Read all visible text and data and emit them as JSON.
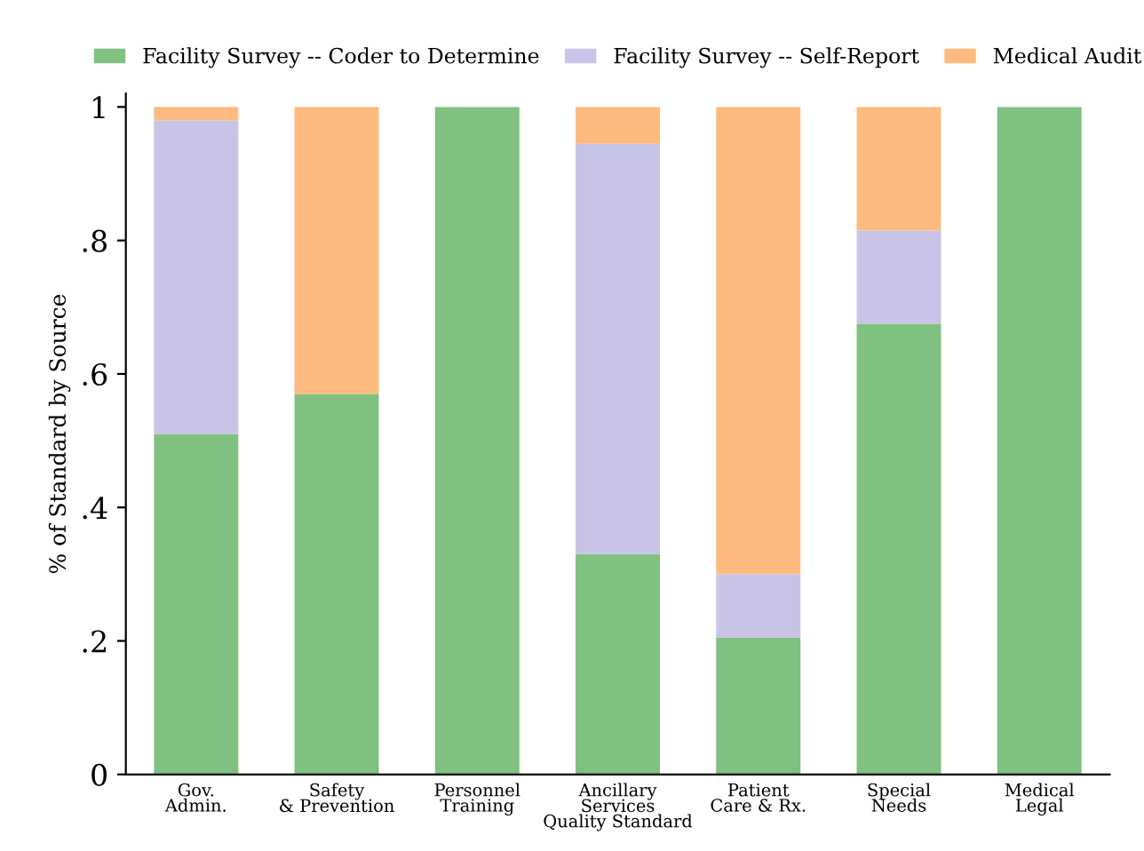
{
  "chart_data": {
    "type": "bar",
    "stacked": true,
    "ylabel": "% of Standard by Source",
    "categories": [
      "Gov.\nAdmin.",
      "Safety\n& Prevention",
      "Personnel\nTraining",
      "Ancillary\nServices\nQuality Standard",
      "Patient\nCare & Rx.",
      "Special\nNeeds",
      "Medical\nLegal"
    ],
    "series": [
      {
        "name": "Facility Survey -- Coder to Determine",
        "color": "#80c080",
        "values": [
          0.51,
          0.57,
          1,
          0.33,
          0.205,
          0.675,
          1
        ]
      },
      {
        "name": "Facility Survey -- Self-Report",
        "color": "#c8c4e8",
        "values": [
          0.47,
          0,
          0,
          0.615,
          0.095,
          0.14,
          0
        ]
      },
      {
        "name": "Medical Audit",
        "color": "#fdbb7f",
        "values": [
          0.02,
          0.43,
          0,
          0.055,
          0.7,
          0.185,
          0
        ]
      }
    ],
    "ylim": [
      0,
      1.02
    ],
    "yticks": [
      0,
      {
        "value": 0.2,
        "label": ".2"
      },
      {
        "value": 0.4,
        "label": ".4"
      },
      {
        "value": 0.6,
        "label": ".6"
      },
      {
        "value": 0.8,
        "label": ".8"
      },
      1
    ],
    "grid": false,
    "legend": "top"
  }
}
